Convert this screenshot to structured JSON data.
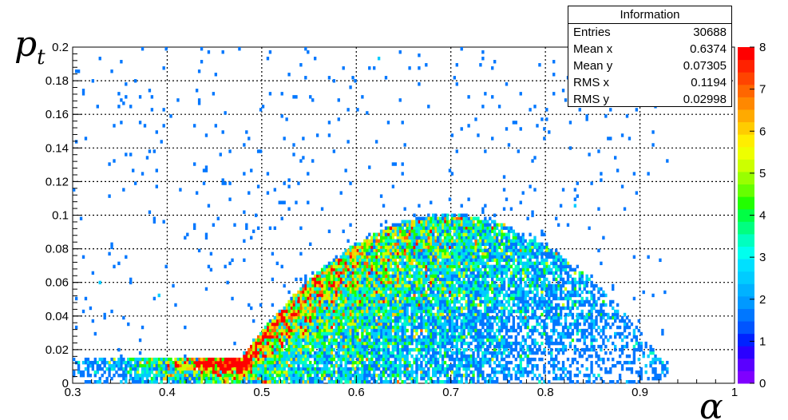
{
  "stats_box": {
    "title": "Information",
    "rows": [
      {
        "label": "Entries",
        "value": "30688"
      },
      {
        "label": "Mean x",
        "value": "0.6374"
      },
      {
        "label": "Mean y",
        "value": "0.07305"
      },
      {
        "label": "RMS x",
        "value": "0.1194"
      },
      {
        "label": "RMS y",
        "value": "0.02998"
      }
    ]
  },
  "chart_data": {
    "type": "heatmap",
    "title": "",
    "xlabel": "α",
    "ylabel_base": "p",
    "ylabel_sub": "t",
    "xlim": [
      0.3,
      1.0
    ],
    "ylim": [
      0,
      0.2
    ],
    "x_ticks": [
      "0.3",
      "0.4",
      "0.5",
      "0.6",
      "0.7",
      "0.8",
      "0.9",
      "1"
    ],
    "y_ticks": [
      "0",
      "0.02",
      "0.04",
      "0.06",
      "0.08",
      "0.1",
      "0.12",
      "0.14",
      "0.16",
      "0.18",
      "0.2"
    ],
    "grid": "dotted",
    "colorbar": {
      "min": 0,
      "max": 8,
      "tick_labels": [
        "0",
        "1",
        "2",
        "3",
        "4",
        "5",
        "6",
        "7",
        "8"
      ],
      "palette": [
        "#7f00ff",
        "#5a00ff",
        "#2a00ff",
        "#0022ff",
        "#0055ff",
        "#0077ff",
        "#0099ff",
        "#00b2ff",
        "#00ccff",
        "#00e0ff",
        "#00ffee",
        "#00ffbf",
        "#00ff80",
        "#00ff44",
        "#22ff00",
        "#66ff00",
        "#99ff00",
        "#ccff00",
        "#eeff00",
        "#ffee00",
        "#ffcc00",
        "#ffaa00",
        "#ff8800",
        "#ff6600",
        "#ff4400",
        "#ff2200",
        "#ff0000"
      ]
    },
    "distribution": {
      "entries": 30688,
      "mean_x": 0.6374,
      "mean_y": 0.07305,
      "rms_x": 0.1194,
      "rms_y": 0.02998,
      "description": "arc-shaped band: pt peaks near 0.1 around alpha 0.65-0.75, falling toward 0.02 near alpha 0.9 and toward 0.04 near alpha 0.45"
    }
  }
}
